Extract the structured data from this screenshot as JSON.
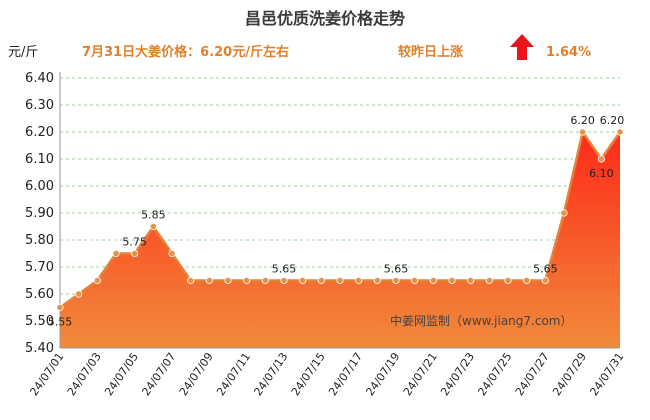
{
  "chart_data": {
    "type": "area",
    "title": "昌邑优质洗姜价格走势",
    "subtitle_left": "7月31日大姜价格：6.20元/斤左右",
    "subtitle_right_prefix": "较昨日上涨",
    "subtitle_right_value": "1.64%",
    "ylabel": "元/斤",
    "ylim": [
      5.4,
      6.4
    ],
    "yticks": [
      "6.40",
      "6.30",
      "6.20",
      "6.10",
      "6.00",
      "5.90",
      "5.80",
      "5.70",
      "5.60",
      "5.50",
      "5.40"
    ],
    "x": [
      "24/07/01",
      "24/07/02",
      "24/07/03",
      "24/07/04",
      "24/07/05",
      "24/07/06",
      "24/07/07",
      "24/07/08",
      "24/07/09",
      "24/07/10",
      "24/07/11",
      "24/07/12",
      "24/07/13",
      "24/07/14",
      "24/07/15",
      "24/07/16",
      "24/07/17",
      "24/07/18",
      "24/07/19",
      "24/07/20",
      "24/07/21",
      "24/07/22",
      "24/07/23",
      "24/07/24",
      "24/07/25",
      "24/07/26",
      "24/07/27",
      "24/07/28",
      "24/07/29",
      "24/07/30",
      "24/07/31"
    ],
    "xtick_labels": [
      "24/07/01",
      "24/07/03",
      "24/07/05",
      "24/07/07",
      "24/07/09",
      "24/07/11",
      "24/07/13",
      "24/07/15",
      "24/07/17",
      "24/07/19",
      "24/07/21",
      "24/07/23",
      "24/07/25",
      "24/07/27",
      "24/07/29",
      "24/07/31"
    ],
    "values": [
      5.55,
      5.6,
      5.65,
      5.75,
      5.75,
      5.85,
      5.75,
      5.65,
      5.65,
      5.65,
      5.65,
      5.65,
      5.65,
      5.65,
      5.65,
      5.65,
      5.65,
      5.65,
      5.65,
      5.65,
      5.65,
      5.65,
      5.65,
      5.65,
      5.65,
      5.65,
      5.65,
      5.9,
      6.2,
      6.1,
      6.2
    ],
    "data_labels": [
      {
        "index": 0,
        "text": "5.55"
      },
      {
        "index": 4,
        "text": "5.75"
      },
      {
        "index": 5,
        "text": "5.85"
      },
      {
        "index": 12,
        "text": "5.65"
      },
      {
        "index": 18,
        "text": "5.65"
      },
      {
        "index": 26,
        "text": "5.65"
      },
      {
        "index": 28,
        "text": "6.20"
      },
      {
        "index": 29,
        "text": "6.10"
      },
      {
        "index": 30,
        "text": "6.20"
      }
    ],
    "watermark": "中姜网监制（www.jiang7.com）",
    "grid": true,
    "colors": {
      "line": "#e5823a",
      "point": "#e8914a",
      "area_top": "#ff2a1a",
      "area_bottom": "#f08a3a",
      "up_arrow": "#e8161b",
      "subtitle": "#e0802a",
      "grid": "#9fcfa0"
    }
  }
}
